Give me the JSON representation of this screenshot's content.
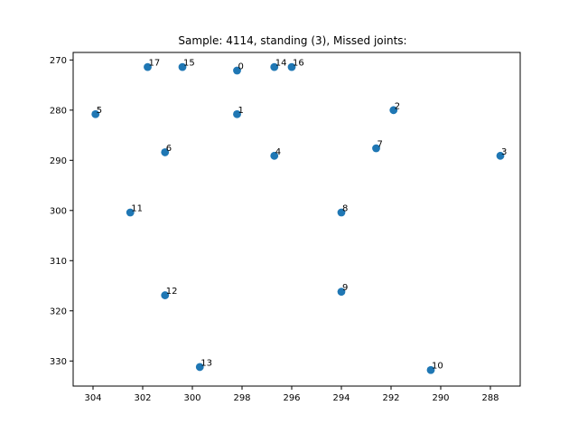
{
  "chart_data": {
    "type": "scatter",
    "title": "Sample: 4114, standing (3), Missed joints:",
    "xlabel": "",
    "ylabel": "",
    "xlim": [
      304.8,
      286.8
    ],
    "ylim": [
      335.0,
      268.5
    ],
    "x_axis_inverted": true,
    "y_axis_inverted": true,
    "xticks": [
      304,
      302,
      300,
      298,
      296,
      294,
      292,
      290,
      288
    ],
    "yticks": [
      270,
      280,
      290,
      300,
      310,
      320,
      330
    ],
    "grid": false,
    "color": "#1f77b4",
    "points": [
      {
        "label": "0",
        "x": 298.2,
        "y": 272.1
      },
      {
        "label": "1",
        "x": 298.2,
        "y": 280.8
      },
      {
        "label": "2",
        "x": 291.9,
        "y": 280.0
      },
      {
        "label": "3",
        "x": 287.6,
        "y": 289.1
      },
      {
        "label": "4",
        "x": 296.7,
        "y": 289.1
      },
      {
        "label": "5",
        "x": 303.9,
        "y": 280.8
      },
      {
        "label": "6",
        "x": 301.1,
        "y": 288.4
      },
      {
        "label": "7",
        "x": 292.6,
        "y": 287.6
      },
      {
        "label": "8",
        "x": 294.0,
        "y": 300.4
      },
      {
        "label": "9",
        "x": 294.0,
        "y": 316.2
      },
      {
        "label": "10",
        "x": 290.4,
        "y": 331.8
      },
      {
        "label": "11",
        "x": 302.5,
        "y": 300.4
      },
      {
        "label": "12",
        "x": 301.1,
        "y": 316.9
      },
      {
        "label": "13",
        "x": 299.7,
        "y": 331.2
      },
      {
        "label": "14",
        "x": 296.7,
        "y": 271.4
      },
      {
        "label": "15",
        "x": 300.4,
        "y": 271.4
      },
      {
        "label": "16",
        "x": 296.0,
        "y": 271.4
      },
      {
        "label": "17",
        "x": 301.8,
        "y": 271.4
      }
    ]
  }
}
